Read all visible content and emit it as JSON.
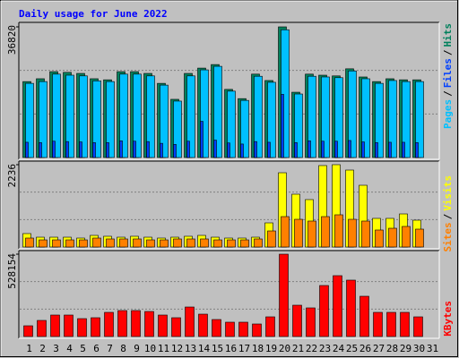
{
  "title": "Daily usage for June 2022",
  "chart_data": [
    {
      "type": "bar",
      "categories": [
        "1",
        "2",
        "3",
        "4",
        "5",
        "6",
        "7",
        "8",
        "9",
        "10",
        "11",
        "12",
        "13",
        "14",
        "15",
        "16",
        "17",
        "18",
        "19",
        "20",
        "21",
        "22",
        "23",
        "24",
        "25",
        "26",
        "27",
        "28",
        "29",
        "30",
        "31"
      ],
      "category_colors": [
        "#000000",
        "#000000",
        "#000000",
        "#00805c",
        "#00805c",
        "#000000",
        "#000000",
        "#000000",
        "#000000",
        "#000000",
        "#00805c",
        "#00805c",
        "#000000",
        "#000000",
        "#000000",
        "#000000",
        "#000000",
        "#00805c",
        "#00805c",
        "#000000",
        "#000000",
        "#000000",
        "#000000",
        "#000000",
        "#00805c",
        "#00805c",
        "#000000",
        "#000000",
        "#000000",
        "#000000",
        "#000000"
      ],
      "ylim": [
        0,
        36820
      ],
      "yticks": [
        36820
      ],
      "separator": "/",
      "series": [
        {
          "name": "Pages",
          "color": "#00c0ff",
          "values": [
            20900,
            21400,
            23500,
            23200,
            23000,
            21600,
            21400,
            23500,
            23500,
            23000,
            20400,
            15900,
            23000,
            24700,
            25700,
            18700,
            16100,
            22900,
            21200,
            36000,
            17900,
            22900,
            22700,
            22500,
            24400,
            22200,
            20900,
            21700,
            21400,
            21400,
            null
          ]
        },
        {
          "name": "Files",
          "color": "#0040ff",
          "values": [
            4300,
            4200,
            4600,
            4500,
            4400,
            4200,
            4200,
            4700,
            4600,
            4500,
            4000,
            3700,
            4600,
            10200,
            4900,
            4100,
            3800,
            4500,
            4300,
            17800,
            4200,
            4700,
            4600,
            4600,
            4800,
            4400,
            4200,
            4300,
            4300,
            4200,
            null
          ]
        },
        {
          "name": "Hits",
          "color": "#00805c",
          "values": [
            21400,
            22200,
            24200,
            24000,
            23700,
            22200,
            21900,
            24200,
            24200,
            23700,
            20900,
            16400,
            23700,
            25200,
            26200,
            19200,
            16600,
            23500,
            21700,
            36820,
            18400,
            23500,
            23200,
            23000,
            25000,
            22700,
            21400,
            22200,
            21900,
            21900,
            null
          ]
        }
      ]
    },
    {
      "type": "bar",
      "ylim": [
        0,
        2236
      ],
      "yticks": [
        2236
      ],
      "separator": "/",
      "series": [
        {
          "name": "Sites",
          "color": "#ff8000",
          "values": [
            243,
            194,
            194,
            194,
            194,
            243,
            219,
            219,
            219,
            194,
            194,
            219,
            219,
            219,
            194,
            194,
            194,
            219,
            437,
            826,
            753,
            705,
            826,
            875,
            753,
            705,
            462,
            510,
            559,
            486,
            null
          ]
        },
        {
          "name": "Visits",
          "color": "#ffff00",
          "values": [
            365,
            267,
            267,
            267,
            243,
            316,
            292,
            267,
            292,
            267,
            243,
            267,
            292,
            316,
            267,
            243,
            243,
            267,
            656,
            2017,
            1434,
            1288,
            2212,
            2236,
            2090,
            1677,
            778,
            778,
            899,
            729,
            null
          ]
        }
      ]
    },
    {
      "type": "bar",
      "ylim": [
        0,
        528154
      ],
      "yticks": [
        528154
      ],
      "series": [
        {
          "name": "KBytes",
          "color": "#ff0000",
          "values": [
            68900,
            103300,
            137800,
            137800,
            114800,
            120600,
            155000,
            166500,
            166500,
            160700,
            137800,
            120600,
            189400,
            143500,
            109100,
            91900,
            91900,
            80400,
            126300,
            528154,
            200900,
            183700,
            327200,
            390400,
            361700,
            258300,
            155000,
            155000,
            155000,
            126300,
            null
          ]
        }
      ]
    }
  ]
}
